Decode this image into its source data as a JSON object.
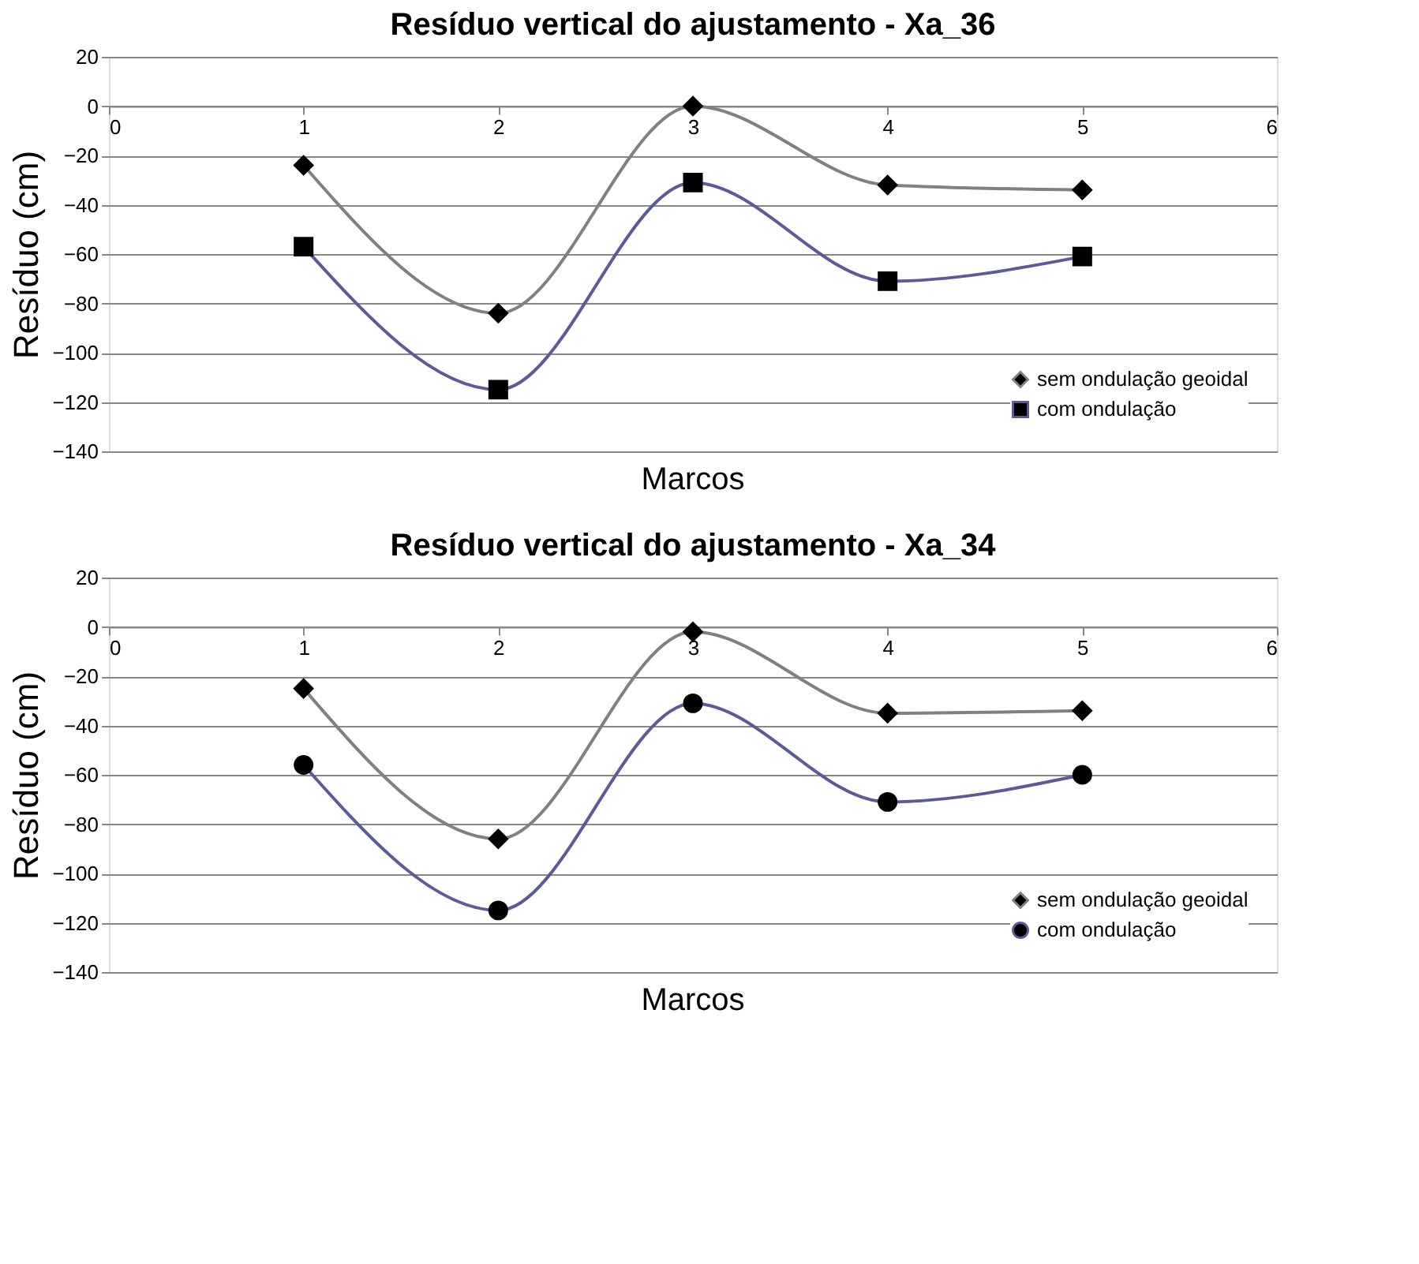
{
  "chart_data": [
    {
      "type": "line",
      "title": "Resíduo vertical do ajustamento - Xa_36",
      "xlabel": "Marcos",
      "ylabel": "Resíduo (cm)",
      "x": [
        1,
        2,
        3,
        4,
        5
      ],
      "xlim": [
        0,
        6
      ],
      "xticks": [
        0,
        1,
        2,
        3,
        4,
        5,
        6
      ],
      "ylim": [
        -140,
        20
      ],
      "yticks": [
        -140,
        -120,
        -100,
        -80,
        -60,
        -40,
        -20,
        0,
        20
      ],
      "grid": "y",
      "legend": "bottom right",
      "series": [
        {
          "name": "sem ondulação geoidal",
          "color": "#808080",
          "marker": "diamond",
          "values": [
            -24,
            -84,
            0,
            -32,
            -34
          ]
        },
        {
          "name": "com ondulação",
          "color": "#5b5b9a",
          "marker": "square",
          "values": [
            -57,
            -115,
            -31,
            -71,
            -61
          ]
        }
      ]
    },
    {
      "type": "line",
      "title": "Resíduo vertical do ajustamento - Xa_34",
      "xlabel": "Marcos",
      "ylabel": "Resíduo (cm)",
      "x": [
        1,
        2,
        3,
        4,
        5
      ],
      "xlim": [
        0,
        6
      ],
      "xticks": [
        0,
        1,
        2,
        3,
        4,
        5,
        6
      ],
      "ylim": [
        -140,
        20
      ],
      "yticks": [
        -140,
        -120,
        -100,
        -80,
        -60,
        -40,
        -20,
        0,
        20
      ],
      "grid": "y",
      "legend": "bottom right",
      "series": [
        {
          "name": "sem ondulação geoidal",
          "color": "#808080",
          "marker": "diamond",
          "values": [
            -25,
            -86,
            -2,
            -35,
            -34
          ]
        },
        {
          "name": "com ondulação",
          "color": "#5b5b9a",
          "marker": "circle",
          "values": [
            -56,
            -115,
            -31,
            -71,
            -60
          ]
        }
      ]
    }
  ]
}
